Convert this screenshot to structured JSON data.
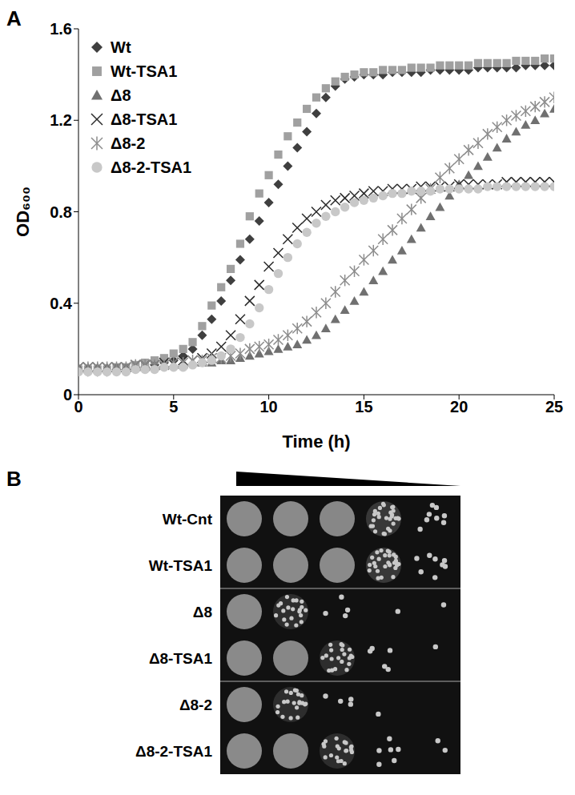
{
  "chart_data": {
    "type": "scatter",
    "panel": "A",
    "x_label": "Time (h)",
    "y_label": "OD₆₀₀",
    "xlim": [
      0,
      25
    ],
    "xticks": [
      0,
      5,
      10,
      15,
      20,
      25
    ],
    "ylim": [
      0,
      1.6
    ],
    "yticks": [
      0,
      0.4,
      0.8,
      1.2,
      1.6
    ],
    "grid": false,
    "legend": "upper left",
    "x": [
      0,
      0.5,
      1,
      1.5,
      2,
      2.5,
      3,
      3.5,
      4,
      4.5,
      5,
      5.5,
      6,
      6.5,
      7,
      7.5,
      8,
      8.5,
      9,
      9.5,
      10,
      10.5,
      11,
      11.5,
      12,
      12.5,
      13,
      13.5,
      14,
      14.5,
      15,
      15.5,
      16,
      16.5,
      17,
      17.5,
      18,
      18.5,
      19,
      19.5,
      20,
      20.5,
      21,
      21.5,
      22,
      22.5,
      23,
      23.5,
      24,
      24.5,
      25
    ],
    "series": [
      {
        "name": "Wt",
        "color": "#3f3f3f",
        "marker": "diamond",
        "values": [
          0.1,
          0.1,
          0.1,
          0.1,
          0.11,
          0.11,
          0.12,
          0.12,
          0.13,
          0.14,
          0.15,
          0.17,
          0.2,
          0.26,
          0.33,
          0.41,
          0.5,
          0.59,
          0.68,
          0.76,
          0.84,
          0.92,
          1.0,
          1.08,
          1.15,
          1.23,
          1.3,
          1.35,
          1.38,
          1.39,
          1.4,
          1.4,
          1.4,
          1.41,
          1.41,
          1.41,
          1.41,
          1.42,
          1.42,
          1.42,
          1.42,
          1.42,
          1.43,
          1.43,
          1.43,
          1.43,
          1.43,
          1.44,
          1.44,
          1.44,
          1.44
        ]
      },
      {
        "name": "Wt-TSA1",
        "color": "#a0a0a0",
        "marker": "square",
        "values": [
          0.11,
          0.11,
          0.11,
          0.11,
          0.12,
          0.12,
          0.13,
          0.14,
          0.15,
          0.16,
          0.18,
          0.2,
          0.23,
          0.3,
          0.39,
          0.47,
          0.55,
          0.66,
          0.78,
          0.88,
          0.96,
          1.05,
          1.13,
          1.19,
          1.25,
          1.3,
          1.34,
          1.37,
          1.39,
          1.4,
          1.41,
          1.41,
          1.42,
          1.42,
          1.42,
          1.43,
          1.43,
          1.43,
          1.44,
          1.44,
          1.44,
          1.44,
          1.45,
          1.45,
          1.45,
          1.45,
          1.46,
          1.46,
          1.46,
          1.47,
          1.47
        ]
      },
      {
        "name": "Δ8",
        "color": "#707070",
        "marker": "triangle",
        "values": [
          0.12,
          0.12,
          0.12,
          0.12,
          0.12,
          0.12,
          0.12,
          0.12,
          0.13,
          0.13,
          0.13,
          0.13,
          0.14,
          0.14,
          0.14,
          0.15,
          0.15,
          0.16,
          0.17,
          0.18,
          0.19,
          0.2,
          0.21,
          0.22,
          0.24,
          0.26,
          0.29,
          0.33,
          0.37,
          0.41,
          0.45,
          0.5,
          0.54,
          0.59,
          0.63,
          0.68,
          0.73,
          0.78,
          0.82,
          0.87,
          0.92,
          0.96,
          1.0,
          1.04,
          1.08,
          1.12,
          1.15,
          1.18,
          1.2,
          1.23,
          1.25
        ]
      },
      {
        "name": "Δ8-TSA1",
        "color": "#2a2a2a",
        "marker": "x",
        "values": [
          0.12,
          0.12,
          0.12,
          0.12,
          0.12,
          0.12,
          0.13,
          0.13,
          0.13,
          0.14,
          0.14,
          0.15,
          0.15,
          0.16,
          0.18,
          0.21,
          0.26,
          0.33,
          0.41,
          0.48,
          0.56,
          0.62,
          0.68,
          0.73,
          0.77,
          0.8,
          0.83,
          0.85,
          0.86,
          0.87,
          0.88,
          0.89,
          0.89,
          0.9,
          0.9,
          0.9,
          0.91,
          0.91,
          0.91,
          0.91,
          0.92,
          0.92,
          0.92,
          0.92,
          0.92,
          0.93,
          0.93,
          0.93,
          0.93,
          0.93,
          0.93
        ]
      },
      {
        "name": "Δ8-2",
        "color": "#8c8c8c",
        "marker": "asterisk",
        "values": [
          0.12,
          0.12,
          0.12,
          0.12,
          0.12,
          0.12,
          0.13,
          0.13,
          0.13,
          0.13,
          0.14,
          0.14,
          0.15,
          0.15,
          0.16,
          0.16,
          0.17,
          0.18,
          0.2,
          0.21,
          0.22,
          0.24,
          0.26,
          0.29,
          0.32,
          0.36,
          0.4,
          0.45,
          0.5,
          0.54,
          0.59,
          0.63,
          0.68,
          0.72,
          0.77,
          0.81,
          0.86,
          0.9,
          0.95,
          0.99,
          1.03,
          1.07,
          1.1,
          1.14,
          1.17,
          1.2,
          1.22,
          1.24,
          1.26,
          1.28,
          1.3
        ]
      },
      {
        "name": "Δ8-2-TSA1",
        "color": "#c8c8c8",
        "marker": "circle",
        "values": [
          0.1,
          0.1,
          0.1,
          0.1,
          0.1,
          0.1,
          0.11,
          0.11,
          0.11,
          0.12,
          0.12,
          0.12,
          0.13,
          0.14,
          0.15,
          0.17,
          0.2,
          0.25,
          0.31,
          0.38,
          0.46,
          0.53,
          0.6,
          0.66,
          0.71,
          0.75,
          0.78,
          0.8,
          0.82,
          0.84,
          0.85,
          0.86,
          0.87,
          0.88,
          0.88,
          0.89,
          0.89,
          0.89,
          0.9,
          0.9,
          0.9,
          0.9,
          0.9,
          0.91,
          0.91,
          0.91,
          0.91,
          0.91,
          0.91,
          0.91,
          0.91
        ]
      }
    ]
  },
  "panel_b": {
    "label": "B",
    "rows": [
      {
        "name": "Wt-Cnt",
        "density": [
          1,
          1,
          0.9,
          0.7,
          0.2
        ]
      },
      {
        "name": "Wt-TSA1",
        "density": [
          1,
          1,
          1,
          0.7,
          0.2
        ]
      },
      {
        "name": "Δ8",
        "density": [
          1,
          0.5,
          0.1,
          0.03,
          0.01
        ]
      },
      {
        "name": "Δ8-TSA1",
        "density": [
          1,
          0.9,
          0.5,
          0.12,
          0.02
        ]
      },
      {
        "name": "Δ8-2",
        "density": [
          1,
          0.5,
          0.1,
          0.03,
          0
        ]
      },
      {
        "name": "Δ8-2-TSA1",
        "density": [
          1,
          0.9,
          0.5,
          0.15,
          0.05
        ]
      }
    ]
  }
}
